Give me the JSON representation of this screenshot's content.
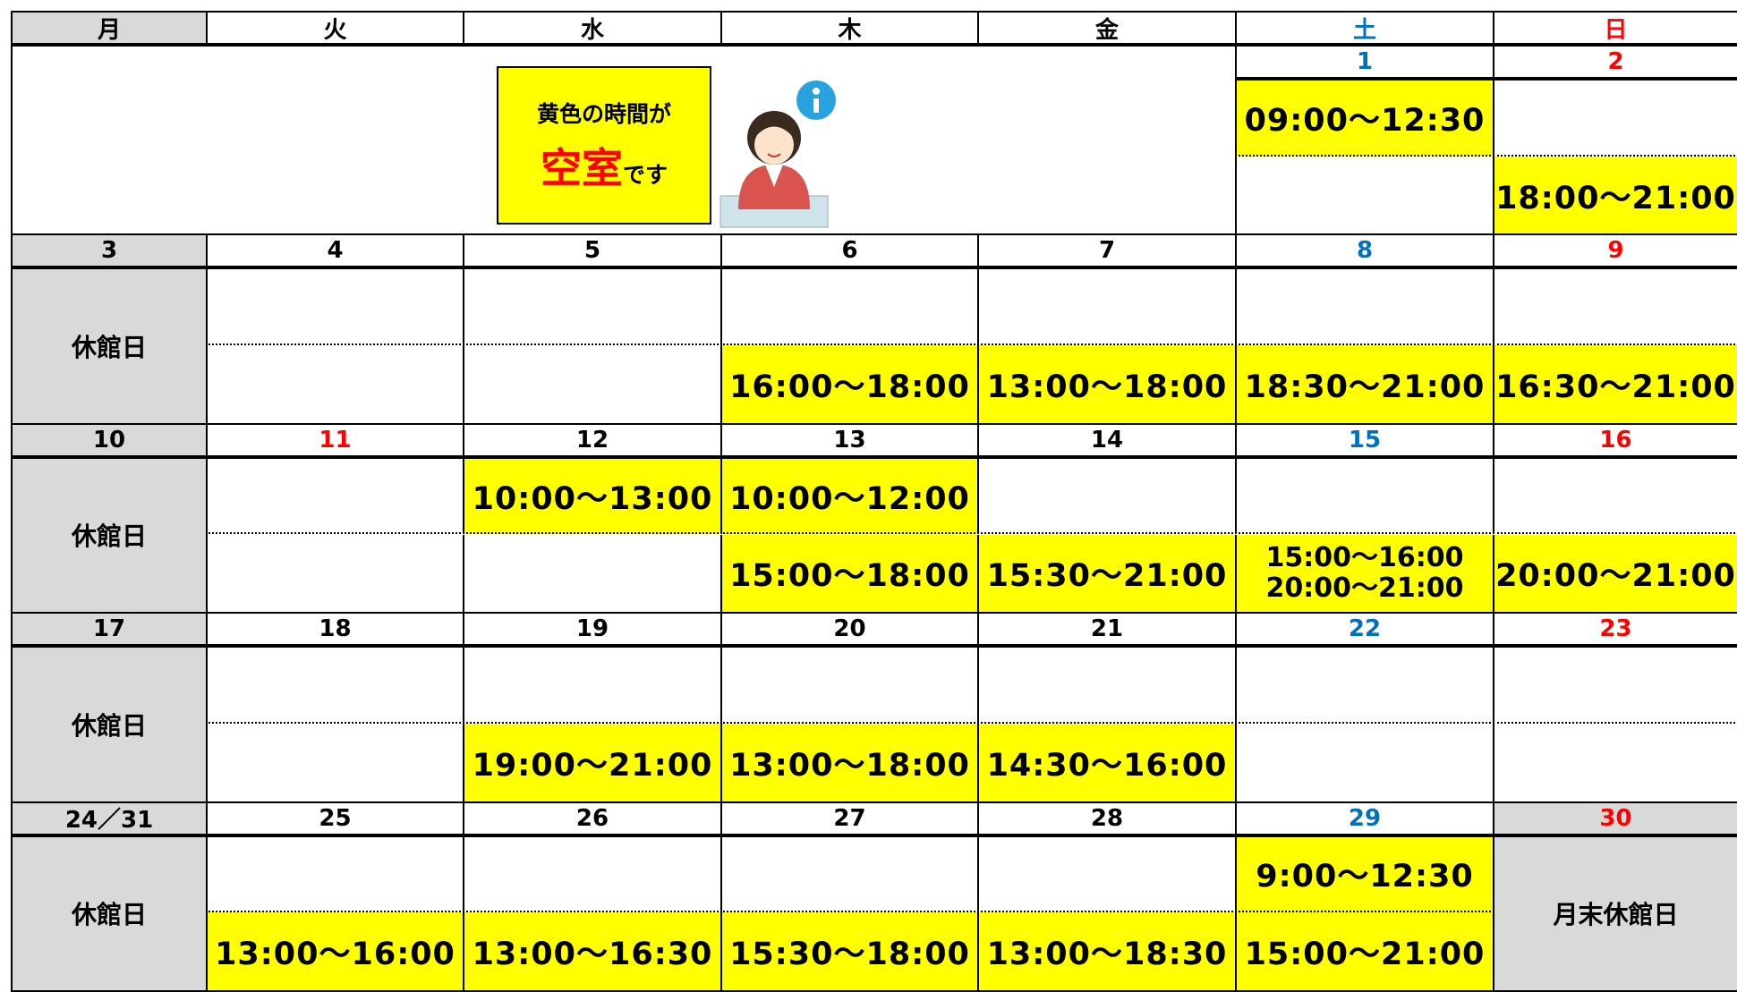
{
  "header": {
    "days": [
      "月",
      "火",
      "水",
      "木",
      "金",
      "土",
      "日"
    ]
  },
  "notice": {
    "line1": "黄色の時間が",
    "emphasis": "空室",
    "suffix": "です"
  },
  "weeks": [
    {
      "days": [
        null,
        null,
        null,
        null,
        null,
        {
          "date": "1",
          "color": "#0070c0",
          "slots": [
            "09:00〜12:30",
            null
          ]
        },
        {
          "date": "2",
          "color": "#ff0000",
          "slots": [
            null,
            "18:00〜21:00"
          ]
        }
      ]
    },
    {
      "days": [
        {
          "date": "3",
          "closed": "休館日"
        },
        {
          "date": "4",
          "slots": [
            null,
            null
          ]
        },
        {
          "date": "5",
          "slots": [
            null,
            null
          ]
        },
        {
          "date": "6",
          "slots": [
            null,
            "16:00〜18:00"
          ]
        },
        {
          "date": "7",
          "slots": [
            null,
            "13:00〜18:00"
          ]
        },
        {
          "date": "8",
          "color": "#0070c0",
          "slots": [
            null,
            "18:30〜21:00"
          ]
        },
        {
          "date": "9",
          "color": "#ff0000",
          "slots": [
            null,
            "16:30〜21:00"
          ]
        }
      ]
    },
    {
      "days": [
        {
          "date": "10",
          "closed": "休館日"
        },
        {
          "date": "11",
          "color": "#ff0000",
          "slots": [
            null,
            null
          ]
        },
        {
          "date": "12",
          "slots": [
            "10:00〜13:00",
            null
          ]
        },
        {
          "date": "13",
          "slots": [
            "10:00〜12:00",
            "15:00〜18:00"
          ]
        },
        {
          "date": "14",
          "slots": [
            null,
            "15:30〜21:00"
          ]
        },
        {
          "date": "15",
          "color": "#0070c0",
          "slots": [
            null,
            [
              "15:00〜16:00",
              "20:00〜21:00"
            ]
          ]
        },
        {
          "date": "16",
          "color": "#ff0000",
          "slots": [
            null,
            "20:00〜21:00"
          ]
        }
      ]
    },
    {
      "days": [
        {
          "date": "17",
          "closed": "休館日"
        },
        {
          "date": "18",
          "slots": [
            null,
            null
          ]
        },
        {
          "date": "19",
          "slots": [
            null,
            "19:00〜21:00"
          ]
        },
        {
          "date": "20",
          "slots": [
            null,
            "13:00〜18:00"
          ]
        },
        {
          "date": "21",
          "slots": [
            null,
            "14:30〜16:00"
          ]
        },
        {
          "date": "22",
          "color": "#0070c0",
          "slots": [
            null,
            null
          ]
        },
        {
          "date": "23",
          "color": "#ff0000",
          "slots": [
            null,
            null
          ]
        }
      ]
    },
    {
      "days": [
        {
          "date": "24／31",
          "closed": "休館日"
        },
        {
          "date": "25",
          "slots": [
            null,
            "13:00〜16:00"
          ]
        },
        {
          "date": "26",
          "slots": [
            null,
            "13:00〜16:30"
          ]
        },
        {
          "date": "27",
          "slots": [
            null,
            "15:30〜18:00"
          ]
        },
        {
          "date": "28",
          "slots": [
            null,
            "13:00〜18:30"
          ]
        },
        {
          "date": "29",
          "color": "#0070c0",
          "slots": [
            "9:00〜12:30",
            "15:00〜21:00"
          ]
        },
        {
          "date": "30",
          "color": "#ff0000",
          "closed": "月末休館日"
        }
      ]
    }
  ]
}
